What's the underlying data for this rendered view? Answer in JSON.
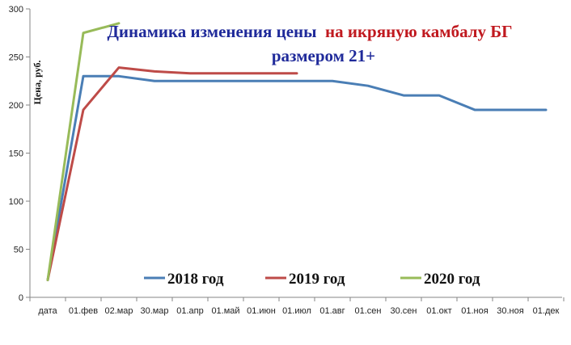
{
  "chart_data": {
    "type": "line",
    "title_part1": "Динамика изменения цены",
    "title_part2": "на икряную камбалу БГ",
    "title_line2": "размером 21+",
    "colors": {
      "title_part1": "#1f2a9a",
      "title_part2": "#c0191f",
      "title_line2": "#1f2a9a"
    },
    "ylabel": "Цена, руб.",
    "xlabel": "",
    "ylim": [
      0,
      300
    ],
    "yticks": [
      "0",
      "50",
      "100",
      "150",
      "200",
      "250",
      "300"
    ],
    "categories": [
      "дата",
      "01.фев",
      "02.мар",
      "30.мар",
      "01.апр",
      "01.май",
      "01.июн",
      "01.июл",
      "01.авг",
      "01.сен",
      "30.сен",
      "01.окт",
      "01.ноя",
      "30.ноя",
      "01.дек"
    ],
    "grid": false,
    "legend_position": "bottom",
    "series": [
      {
        "name": "2018 год",
        "color": "#4a7eb5",
        "x": [
          0,
          1,
          2,
          3,
          4,
          5,
          6,
          7,
          8,
          9,
          10,
          11,
          12,
          13,
          14
        ],
        "values": [
          18,
          230,
          230,
          225,
          225,
          225,
          225,
          225,
          225,
          220,
          210,
          210,
          195,
          195,
          195
        ]
      },
      {
        "name": "2019 год",
        "color": "#be4b48",
        "x": [
          0,
          1,
          2,
          3,
          4,
          5,
          6,
          7
        ],
        "values": [
          18,
          195,
          239,
          235,
          233,
          233,
          233,
          233
        ]
      },
      {
        "name": "2020 год",
        "color": "#98bb59",
        "x": [
          0,
          1,
          2
        ],
        "values": [
          18,
          275,
          285
        ]
      }
    ]
  }
}
